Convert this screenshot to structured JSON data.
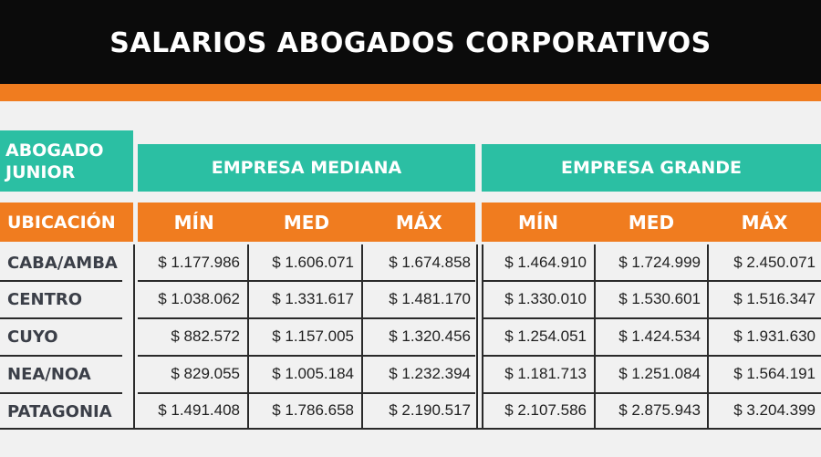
{
  "title": "SALARIOS ABOGADOS CORPORATIVOS",
  "colors": {
    "black": "#0b0b0b",
    "orange": "#f07c1f",
    "teal": "#2bbfa3",
    "text": "#3b3f48",
    "background": "#f1f1f1"
  },
  "table": {
    "corner_label": "ABOGADO JUNIOR",
    "location_header": "UBICACIÓN",
    "groups": [
      {
        "label": "EMPRESA MEDIANA",
        "columns": [
          "MÍN",
          "MED",
          "MÁX"
        ]
      },
      {
        "label": "EMPRESA GRANDE",
        "columns": [
          "MÍN",
          "MED",
          "MÁX"
        ]
      }
    ],
    "rows": [
      {
        "location": "CABA/AMBA",
        "values": [
          "$ 1.177.986",
          "$ 1.606.071",
          "$ 1.674.858",
          "$ 1.464.910",
          "$ 1.724.999",
          "$ 2.450.071"
        ]
      },
      {
        "location": "CENTRO",
        "values": [
          "$ 1.038.062",
          "$ 1.331.617",
          "$ 1.481.170",
          "$ 1.330.010",
          "$ 1.530.601",
          "$ 1.516.347"
        ]
      },
      {
        "location": "CUYO",
        "values": [
          "$ 882.572",
          "$ 1.157.005",
          "$ 1.320.456",
          "$ 1.254.051",
          "$ 1.424.534",
          "$ 1.931.630"
        ]
      },
      {
        "location": "NEA/NOA",
        "values": [
          "$ 829.055",
          "$ 1.005.184",
          "$ 1.232.394",
          "$ 1.181.713",
          "$ 1.251.084",
          "$ 1.564.191"
        ]
      },
      {
        "location": "PATAGONIA",
        "values": [
          "$ 1.491.408",
          "$ 1.786.658",
          "$ 2.190.517",
          "$ 2.107.586",
          "$ 2.875.943",
          "$ 3.204.399"
        ]
      }
    ]
  }
}
